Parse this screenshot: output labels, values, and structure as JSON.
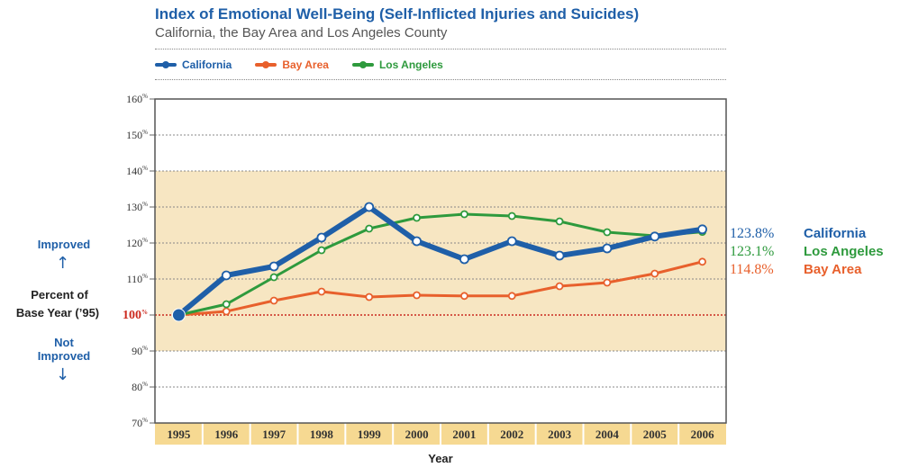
{
  "title": "Index of Emotional Well-Being (Self-Inflicted Injuries and Suicides)",
  "subtitle": "California, the Bay Area and Los Angeles County",
  "left_labels": {
    "improved": "Improved",
    "percent": "Percent of",
    "base": "Base Year (’95)",
    "not": "Not",
    "not_improved": "Improved",
    "base_value": "100"
  },
  "end_labels": [
    {
      "value": "123.8%",
      "name": "California",
      "color": "#1f5fa8"
    },
    {
      "value": "123.1%",
      "name": "Los Angeles",
      "color": "#2e9a3d"
    },
    {
      "value": "114.8%",
      "name": "Bay Area",
      "color": "#e8602c"
    }
  ],
  "colors": {
    "band": "#f7e6c2",
    "tickband": "#f6d992",
    "baseline": "#cc2a1f",
    "grid": "#888888"
  },
  "chart_data": {
    "type": "line",
    "title": "Index of Emotional Well-Being (Self-Inflicted Injuries and Suicides)",
    "subtitle": "California, the Bay Area and Los Angeles County",
    "xlabel": "Year",
    "ylabel": "Percent of Base Year (’95)",
    "categories": [
      "1995",
      "1996",
      "1997",
      "1998",
      "1999",
      "2000",
      "2001",
      "2002",
      "2003",
      "2004",
      "2005",
      "2006"
    ],
    "ylim": [
      70,
      160
    ],
    "yticks": [
      70,
      80,
      90,
      100,
      110,
      120,
      130,
      140,
      150,
      160
    ],
    "shaded_range": [
      90,
      140
    ],
    "legend": "top",
    "grid": true,
    "series": [
      {
        "name": "California",
        "color": "#1f5fa8",
        "values": [
          100,
          111,
          113.5,
          121.5,
          130,
          120.5,
          115.5,
          120.5,
          116.5,
          118.5,
          121.8,
          123.8
        ]
      },
      {
        "name": "Bay Area",
        "color": "#e8602c",
        "values": [
          100,
          101,
          104,
          106.5,
          105,
          105.5,
          105.3,
          105.3,
          108,
          109,
          111.5,
          114.8
        ]
      },
      {
        "name": "Los Angeles",
        "color": "#2e9a3d",
        "values": [
          100,
          103,
          110.5,
          118,
          124,
          127,
          128,
          127.5,
          126,
          123,
          122,
          123.1
        ]
      }
    ]
  }
}
